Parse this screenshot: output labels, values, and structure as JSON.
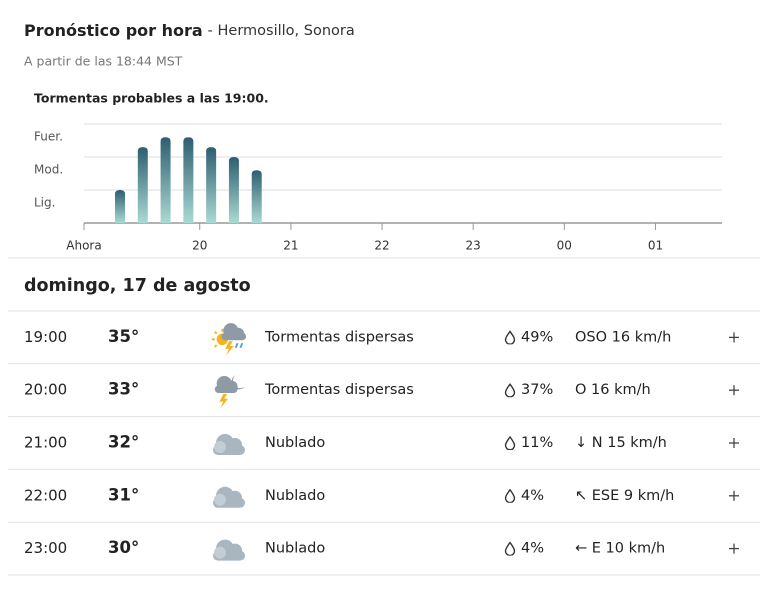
{
  "header": {
    "title": "Pronóstico por hora",
    "location": "- Hermosillo, Sonora",
    "updated": "A partir de las 18:44 MST"
  },
  "chart_data": {
    "type": "bar",
    "title": "Tormentas probables a las 19:00.",
    "x": [
      19.125,
      19.375,
      19.625,
      19.875,
      20.125,
      20.375,
      20.625
    ],
    "values": [
      1,
      2.3,
      2.6,
      2.6,
      2.3,
      2,
      1.6
    ],
    "xlim": [
      18.73,
      25.73
    ],
    "xticks": [
      {
        "value": 18.73,
        "label": "Ahora"
      },
      20,
      21,
      22,
      23,
      {
        "value": 24,
        "label": "00"
      },
      {
        "value": 25,
        "label": "01"
      }
    ],
    "ylim": [
      0,
      3
    ],
    "yticks": [
      {
        "value": 1,
        "label": "Lig."
      },
      {
        "value": 2,
        "label": "Mod."
      },
      {
        "value": 3,
        "label": "Fuer."
      }
    ],
    "grid": true,
    "color_top": "#2d5e71",
    "color_bottom": "#aadad2"
  },
  "day": "domingo, 17 de agosto",
  "rows": [
    {
      "time": "19:00",
      "temp": "35°",
      "condition": "Tormentas dispersas",
      "precip": "49%",
      "wind": "OSO 16 km/h"
    },
    {
      "time": "20:00",
      "temp": "33°",
      "condition": "Tormentas dispersas",
      "precip": "37%",
      "wind": "O 16 km/h"
    },
    {
      "time": "21:00",
      "temp": "32°",
      "condition": "Nublado",
      "precip": "11%",
      "wind": "↓ N 15 km/h"
    },
    {
      "time": "22:00",
      "temp": "31°",
      "condition": "Nublado",
      "precip": "4%",
      "wind": "↖ ESE 9 km/h"
    },
    {
      "time": "23:00",
      "temp": "30°",
      "condition": "Nublado",
      "precip": "4%",
      "wind": "← E 10 km/h"
    }
  ]
}
